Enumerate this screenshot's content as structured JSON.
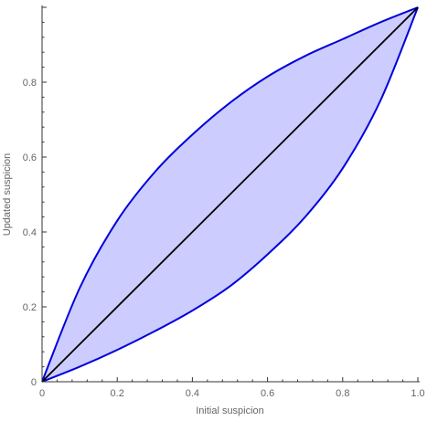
{
  "chart_data": {
    "type": "area",
    "title": "",
    "xlabel": "Initial suspicion",
    "ylabel": "Updated suspicion",
    "xlim": [
      0,
      1
    ],
    "ylim": [
      0,
      1
    ],
    "x_ticks": [
      "0",
      "0.2",
      "0.4",
      "0.6",
      "0.8",
      "1.0"
    ],
    "y_ticks": [
      "0",
      "0.2",
      "0.4",
      "0.6",
      "0.8"
    ],
    "x_tick_values": [
      0,
      0.2,
      0.4,
      0.6,
      0.8,
      1.0
    ],
    "y_tick_values": [
      0,
      0.2,
      0.4,
      0.6,
      0.8
    ],
    "grid": false,
    "series": [
      {
        "role": "upper",
        "x": [
          0,
          0.1,
          0.2,
          0.3,
          0.4,
          0.5,
          0.6,
          0.7,
          0.8,
          0.9,
          1.0
        ],
        "y": [
          0,
          0.25,
          0.43,
          0.56,
          0.66,
          0.745,
          0.815,
          0.87,
          0.915,
          0.96,
          1.0
        ]
      },
      {
        "role": "lower",
        "x": [
          0,
          0.1,
          0.2,
          0.3,
          0.4,
          0.5,
          0.6,
          0.7,
          0.8,
          0.9,
          1.0
        ],
        "y": [
          0,
          0.04,
          0.085,
          0.135,
          0.19,
          0.255,
          0.34,
          0.44,
          0.57,
          0.75,
          1.0
        ]
      },
      {
        "role": "diagonal",
        "x": [
          0,
          1
        ],
        "y": [
          0,
          1
        ]
      }
    ],
    "colors": {
      "band_fill": "#ccccff",
      "band_stroke": "#0000dd",
      "diagonal": "#000000",
      "axis": "#333333"
    }
  }
}
